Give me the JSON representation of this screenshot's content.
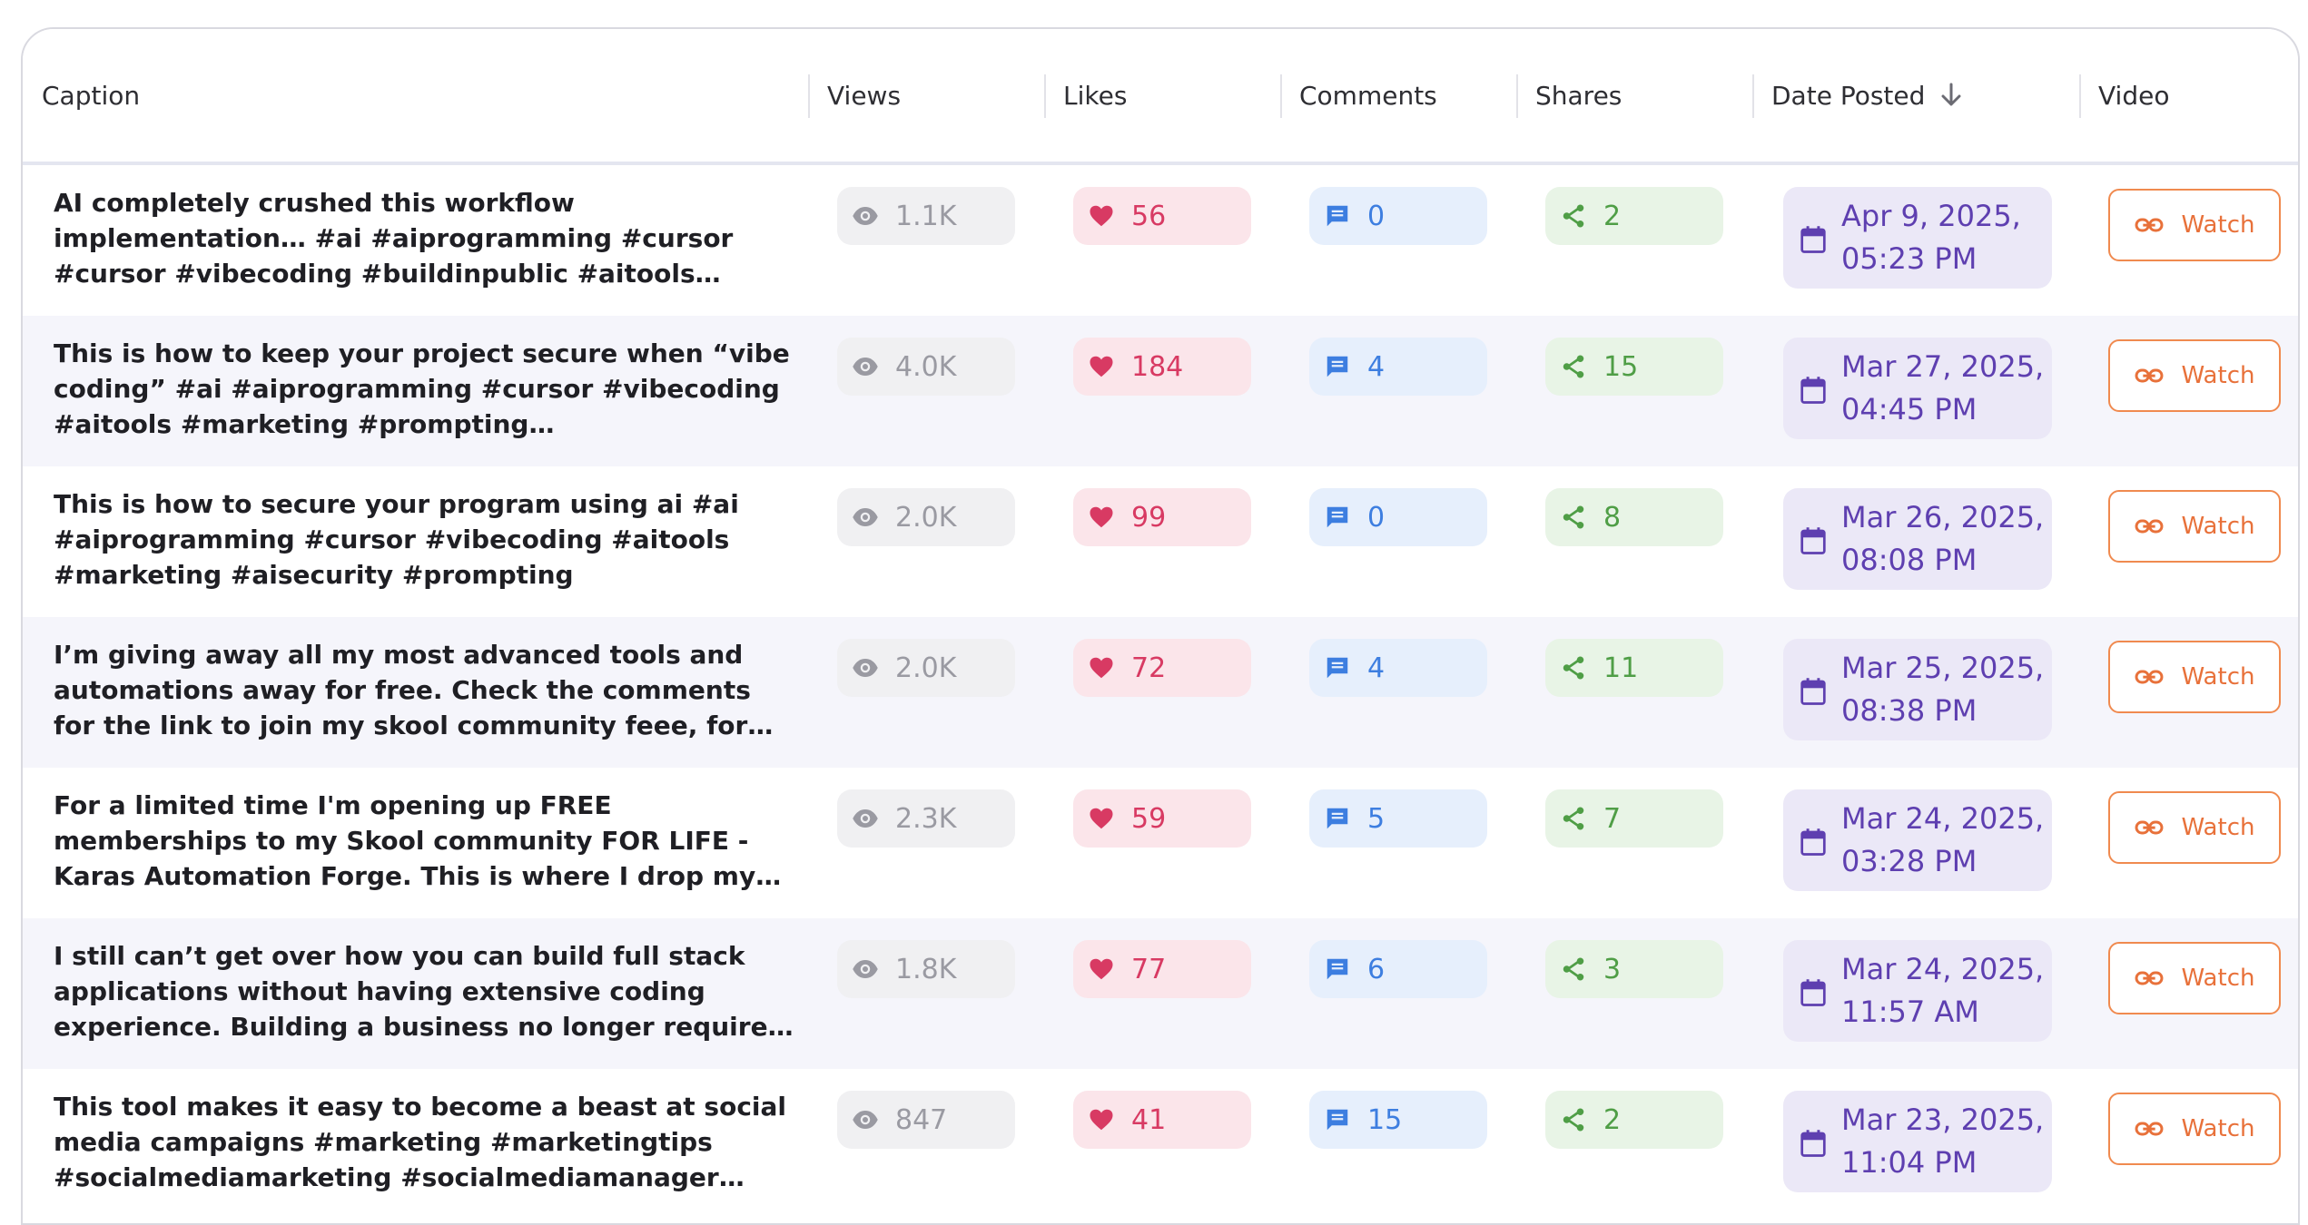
{
  "table": {
    "columns": {
      "caption": "Caption",
      "views": "Views",
      "likes": "Likes",
      "comments": "Comments",
      "shares": "Shares",
      "date": "Date Posted",
      "video": "Video"
    },
    "sort": {
      "column": "date",
      "direction": "descending",
      "icon": "arrow-down-icon"
    },
    "watch_label": "Watch",
    "more_label": "...",
    "icons": {
      "views": "eye-icon",
      "likes": "heart-icon",
      "comments": "comment-icon",
      "shares": "share-icon",
      "date": "calendar-icon",
      "watch": "link-icon"
    },
    "colors": {
      "likes": "#d83a63",
      "comments": "#3d7ee0",
      "shares": "#4f9e46",
      "date": "#5e3fb0",
      "watch": "#e8713a"
    },
    "rows": [
      {
        "caption": "AI completely crushed this workflow implementation… #ai #aiprogramming #cursor #cursor #vibecoding #buildinpublic #aitools #marketing #socialmediamarketing",
        "views": "1.1K",
        "likes": "56",
        "comments": "0",
        "shares": "2",
        "date_line1": "Apr 9, 2025,",
        "date_line2": "05:23 PM"
      },
      {
        "caption": "This is how to keep your project secure when “vibe coding” #ai #aiprogramming #cursor #vibecoding #aitools #marketing #prompting #infleuncermarketing",
        "views": "4.0K",
        "likes": "184",
        "comments": "4",
        "shares": "15",
        "date_line1": "Mar 27, 2025,",
        "date_line2": "04:45 PM"
      },
      {
        "caption": "This is how to secure your program using ai #ai #aiprogramming #cursor #vibecoding #aitools #marketing #aisecurity #prompting",
        "views": "2.0K",
        "likes": "99",
        "comments": "0",
        "shares": "8",
        "date_line1": "Mar 26, 2025,",
        "date_line2": "08:08 PM"
      },
      {
        "caption": "I’m giving away all my most advanced tools and automations away for free. Check the comments for the link to join my skool community feee, for life! #aiprogramming #ai…",
        "views": "2.0K",
        "likes": "72",
        "comments": "4",
        "shares": "11",
        "date_line1": "Mar 25, 2025,",
        "date_line2": "08:38 PM"
      },
      {
        "caption": "For a limited time I'm opening up FREE memberships to my Skool community FOR LIFE - Karas Automation Forge. This is where I drop my most advanced automations, scrapers and…",
        "views": "2.3K",
        "likes": "59",
        "comments": "5",
        "shares": "7",
        "date_line1": "Mar 24, 2025,",
        "date_line2": "03:28 PM"
      },
      {
        "caption": "I still can’t get over how you can build full stack applications without having extensive coding experience. Building a business no longer requires mass amounts of resources and…",
        "views": "1.8K",
        "likes": "77",
        "comments": "6",
        "shares": "3",
        "date_line1": "Mar 24, 2025,",
        "date_line2": "11:57 AM"
      },
      {
        "caption": "This tool makes it easy to become a beast at social media campaigns #marketing #marketingtips #socialmediamarketing #socialmediamanager…",
        "views": "847",
        "likes": "41",
        "comments": "15",
        "shares": "2",
        "date_line1": "Mar 23, 2025,",
        "date_line2": "11:04 PM"
      }
    ]
  }
}
